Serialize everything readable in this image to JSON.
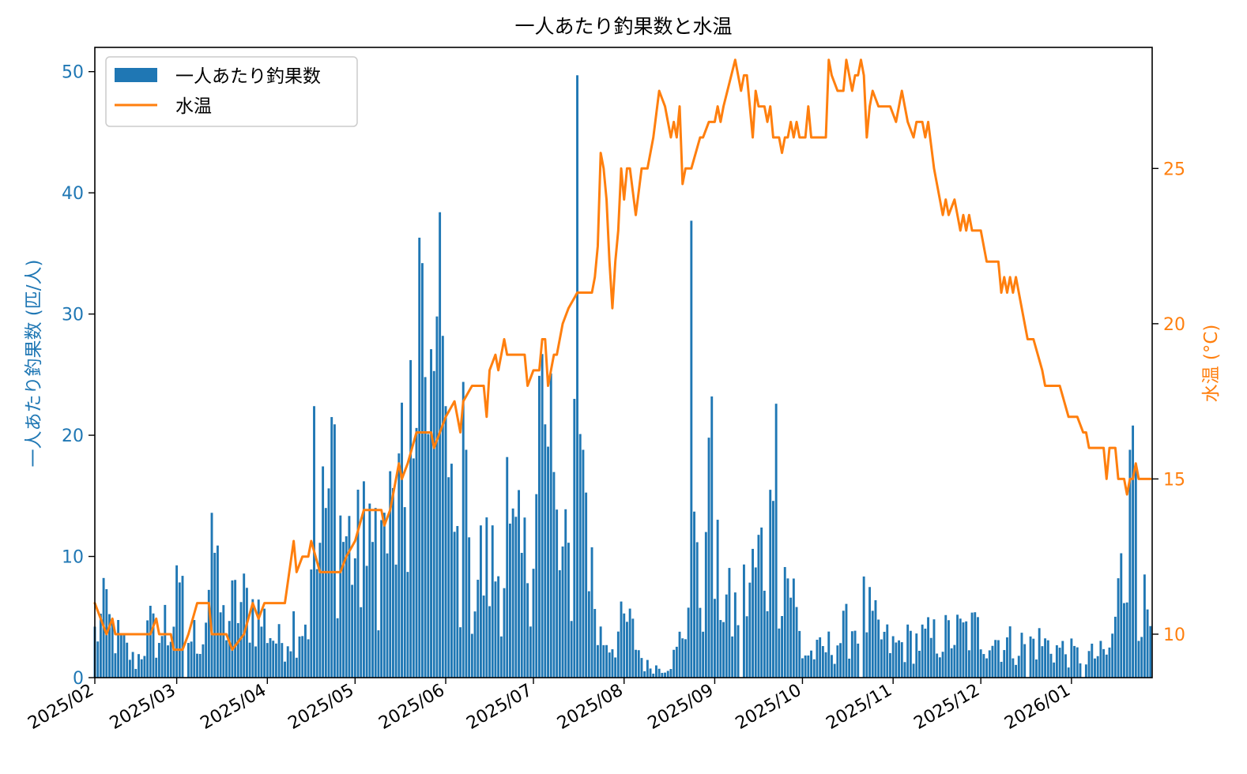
{
  "chart_data": {
    "type": "bar+line",
    "title": "一人あたり釣果数と水温",
    "y1_label": "一人あたり釣果数 (匹/人)",
    "y2_label": "水温 (°C)",
    "x_ticks": [
      "2025/02",
      "2025/03",
      "2025/04",
      "2025/05",
      "2025/06",
      "2025/07",
      "2025/08",
      "2025/09",
      "2025/10",
      "2025/11",
      "2025/12",
      "2026/01"
    ],
    "x_range": [
      "2025-02-01",
      "2026-01-28"
    ],
    "y1_range": [
      0,
      52
    ],
    "y1_ticks": [
      0,
      10,
      20,
      30,
      40,
      50
    ],
    "y2_range": [
      8.6,
      28.9
    ],
    "y2_ticks": [
      10,
      15,
      20,
      25
    ],
    "legend": {
      "placement": "upper-left",
      "bar_label": "一人あたり釣果数",
      "line_label": "水温"
    },
    "colors": {
      "bars": "#1f77b4",
      "line": "#ff7f0e",
      "y1_axis": "#1f77b4",
      "y2_axis": "#ff7f0e"
    },
    "catch_per_person": {
      "anchors": [
        [
          "2025-02-01",
          3.5
        ],
        [
          "2025-02-04",
          5.0
        ],
        [
          "2025-02-08",
          3.5
        ],
        [
          "2025-02-12",
          2.2
        ],
        [
          "2025-02-15",
          1.2
        ],
        [
          "2025-02-20",
          4.0
        ],
        [
          "2025-02-25",
          2.3
        ],
        [
          "2025-03-01",
          6.0
        ],
        [
          "2025-03-05",
          3.2
        ],
        [
          "2025-03-10",
          3.6
        ],
        [
          "2025-03-13",
          9.0
        ],
        [
          "2025-03-17",
          4.5
        ],
        [
          "2025-03-22",
          6.0
        ],
        [
          "2025-03-27",
          5.8
        ],
        [
          "2025-04-01",
          4.2
        ],
        [
          "2025-04-05",
          2.8
        ],
        [
          "2025-04-10",
          4.5
        ],
        [
          "2025-04-15",
          5.0
        ],
        [
          "2025-04-20",
          12.0
        ],
        [
          "2025-04-25",
          13.0
        ],
        [
          "2025-05-01",
          10.0
        ],
        [
          "2025-05-05",
          9.0
        ],
        [
          "2025-05-10",
          11.0
        ],
        [
          "2025-05-15",
          13.0
        ],
        [
          "2025-05-20",
          15.0
        ],
        [
          "2025-05-25",
          23.0
        ],
        [
          "2025-05-30",
          18.0
        ],
        [
          "2025-06-03",
          12.0
        ],
        [
          "2025-06-08",
          7.0
        ],
        [
          "2025-06-13",
          9.0
        ],
        [
          "2025-06-18",
          9.0
        ],
        [
          "2025-06-23",
          10.0
        ],
        [
          "2025-06-28",
          9.0
        ],
        [
          "2025-07-03",
          16.0
        ],
        [
          "2025-07-07",
          16.0
        ],
        [
          "2025-07-10",
          9.0
        ],
        [
          "2025-07-15",
          9.0
        ],
        [
          "2025-07-19",
          14.0
        ],
        [
          "2025-07-23",
          3.5
        ],
        [
          "2025-07-28",
          3.0
        ],
        [
          "2025-08-02",
          4.5
        ],
        [
          "2025-08-05",
          3.0
        ],
        [
          "2025-08-08",
          1.0
        ],
        [
          "2025-08-15",
          0.8
        ],
        [
          "2025-08-19",
          2.0
        ],
        [
          "2025-08-23",
          6.0
        ],
        [
          "2025-08-28",
          8.0
        ],
        [
          "2025-09-02",
          8.0
        ],
        [
          "2025-09-07",
          5.0
        ],
        [
          "2025-09-12",
          7.0
        ],
        [
          "2025-09-17",
          10.0
        ],
        [
          "2025-09-22",
          11.0
        ],
        [
          "2025-09-27",
          8.0
        ],
        [
          "2025-10-01",
          2.0
        ],
        [
          "2025-10-06",
          2.0
        ],
        [
          "2025-10-12",
          2.8
        ],
        [
          "2025-10-17",
          4.0
        ],
        [
          "2025-10-22",
          5.5
        ],
        [
          "2025-10-27",
          3.5
        ],
        [
          "2025-11-01",
          2.5
        ],
        [
          "2025-11-08",
          3.0
        ],
        [
          "2025-11-15",
          3.2
        ],
        [
          "2025-11-22",
          3.5
        ],
        [
          "2025-11-29",
          3.8
        ],
        [
          "2025-12-06",
          3.2
        ],
        [
          "2025-12-13",
          2.6
        ],
        [
          "2025-12-20",
          3.0
        ],
        [
          "2025-12-27",
          2.4
        ],
        [
          "2026-01-03",
          1.8
        ],
        [
          "2026-01-09",
          1.8
        ],
        [
          "2026-01-14",
          2.0
        ],
        [
          "2026-01-18",
          8.0
        ],
        [
          "2026-01-22",
          10.0
        ],
        [
          "2026-01-25",
          6.0
        ],
        [
          "2026-01-28",
          5.5
        ]
      ],
      "peaks": [
        [
          "2025-02-05",
          7.3
        ],
        [
          "2025-02-25",
          6.0
        ],
        [
          "2025-03-03",
          8.4
        ],
        [
          "2025-03-13",
          13.6
        ],
        [
          "2025-03-14",
          10.3
        ],
        [
          "2025-04-17",
          22.4
        ],
        [
          "2025-04-23",
          21.5
        ],
        [
          "2025-04-24",
          20.9
        ],
        [
          "2025-05-04",
          16.2
        ],
        [
          "2025-05-08",
          14.0
        ],
        [
          "2025-05-20",
          26.2
        ],
        [
          "2025-05-22",
          20.6
        ],
        [
          "2025-05-23",
          36.3
        ],
        [
          "2025-05-24",
          34.2
        ],
        [
          "2025-05-25",
          24.8
        ],
        [
          "2025-05-26",
          20.1
        ],
        [
          "2025-05-27",
          27.1
        ],
        [
          "2025-05-28",
          25.3
        ],
        [
          "2025-05-29",
          29.8
        ],
        [
          "2025-05-30",
          38.4
        ],
        [
          "2025-05-31",
          28.2
        ],
        [
          "2025-06-01",
          22.4
        ],
        [
          "2025-06-07",
          24.4
        ],
        [
          "2025-06-08",
          18.8
        ],
        [
          "2025-06-22",
          18.2
        ],
        [
          "2025-07-03",
          24.9
        ],
        [
          "2025-07-04",
          26.7
        ],
        [
          "2025-07-05",
          20.9
        ],
        [
          "2025-07-07",
          25.1
        ],
        [
          "2025-07-15",
          23.0
        ],
        [
          "2025-07-16",
          49.7
        ],
        [
          "2025-07-17",
          20.1
        ],
        [
          "2025-07-18",
          18.8
        ],
        [
          "2025-08-24",
          37.7
        ],
        [
          "2025-08-25",
          13.7
        ],
        [
          "2025-08-30",
          19.8
        ],
        [
          "2025-08-31",
          23.2
        ],
        [
          "2025-09-20",
          15.5
        ],
        [
          "2025-09-22",
          22.6
        ],
        [
          "2026-01-21",
          18.8
        ],
        [
          "2026-01-22",
          20.8
        ],
        [
          "2026-01-23",
          17.2
        ]
      ],
      "zero_days": [
        "2025-03-04",
        "2025-09-10",
        "2025-10-21",
        "2025-12-17",
        "2026-01-05"
      ]
    },
    "water_temp": {
      "anchors": [
        [
          "2025-02-01",
          11.0
        ],
        [
          "2025-02-05",
          10.0
        ],
        [
          "2025-02-07",
          10.5
        ],
        [
          "2025-02-08",
          10.0
        ],
        [
          "2025-02-20",
          10.0
        ],
        [
          "2025-02-22",
          10.5
        ],
        [
          "2025-02-23",
          10.0
        ],
        [
          "2025-02-27",
          10.0
        ],
        [
          "2025-02-28",
          9.5
        ],
        [
          "2025-03-03",
          9.5
        ],
        [
          "2025-03-05",
          10.0
        ],
        [
          "2025-03-08",
          11.0
        ],
        [
          "2025-03-12",
          11.0
        ],
        [
          "2025-03-13",
          10.0
        ],
        [
          "2025-03-18",
          10.0
        ],
        [
          "2025-03-20",
          9.5
        ],
        [
          "2025-03-24",
          10.0
        ],
        [
          "2025-03-27",
          11.0
        ],
        [
          "2025-03-29",
          10.5
        ],
        [
          "2025-03-31",
          11.0
        ],
        [
          "2025-04-07",
          11.0
        ],
        [
          "2025-04-10",
          13.0
        ],
        [
          "2025-04-11",
          12.0
        ],
        [
          "2025-04-13",
          12.5
        ],
        [
          "2025-04-15",
          12.5
        ],
        [
          "2025-04-16",
          13.0
        ],
        [
          "2025-04-19",
          12.0
        ],
        [
          "2025-04-26",
          12.0
        ],
        [
          "2025-04-28",
          12.5
        ],
        [
          "2025-05-01",
          13.0
        ],
        [
          "2025-05-04",
          14.0
        ],
        [
          "2025-05-10",
          14.0
        ],
        [
          "2025-05-11",
          13.5
        ],
        [
          "2025-05-13",
          14.0
        ],
        [
          "2025-05-16",
          15.5
        ],
        [
          "2025-05-17",
          15.0
        ],
        [
          "2025-05-19",
          15.5
        ],
        [
          "2025-05-22",
          16.5
        ],
        [
          "2025-05-27",
          16.5
        ],
        [
          "2025-05-28",
          16.0
        ],
        [
          "2025-05-30",
          16.5
        ],
        [
          "2025-06-01",
          17.0
        ],
        [
          "2025-06-04",
          17.5
        ],
        [
          "2025-06-06",
          16.5
        ],
        [
          "2025-06-07",
          17.5
        ],
        [
          "2025-06-10",
          18.0
        ],
        [
          "2025-06-14",
          18.0
        ],
        [
          "2025-06-15",
          17.0
        ],
        [
          "2025-06-16",
          18.5
        ],
        [
          "2025-06-18",
          19.0
        ],
        [
          "2025-06-19",
          18.5
        ],
        [
          "2025-06-21",
          19.5
        ],
        [
          "2025-06-22",
          19.0
        ],
        [
          "2025-06-28",
          19.0
        ],
        [
          "2025-06-29",
          18.0
        ],
        [
          "2025-07-01",
          18.5
        ],
        [
          "2025-07-03",
          18.5
        ],
        [
          "2025-07-04",
          19.5
        ],
        [
          "2025-07-05",
          19.5
        ],
        [
          "2025-07-06",
          18.0
        ],
        [
          "2025-07-08",
          19.0
        ],
        [
          "2025-07-09",
          19.0
        ],
        [
          "2025-07-11",
          20.0
        ],
        [
          "2025-07-13",
          20.5
        ],
        [
          "2025-07-16",
          21.0
        ],
        [
          "2025-07-21",
          21.0
        ],
        [
          "2025-07-22",
          21.5
        ],
        [
          "2025-07-23",
          22.5
        ],
        [
          "2025-07-24",
          25.5
        ],
        [
          "2025-07-25",
          25.0
        ],
        [
          "2025-07-26",
          24.0
        ],
        [
          "2025-07-27",
          22.0
        ],
        [
          "2025-07-28",
          20.5
        ],
        [
          "2025-07-29",
          22.0
        ],
        [
          "2025-07-30",
          23.0
        ],
        [
          "2025-07-31",
          25.0
        ],
        [
          "2025-08-01",
          24.0
        ],
        [
          "2025-08-02",
          25.0
        ],
        [
          "2025-08-03",
          25.0
        ],
        [
          "2025-08-05",
          23.5
        ],
        [
          "2025-08-07",
          25.0
        ],
        [
          "2025-08-09",
          25.0
        ],
        [
          "2025-08-11",
          26.0
        ],
        [
          "2025-08-13",
          27.5
        ],
        [
          "2025-08-15",
          27.0
        ],
        [
          "2025-08-17",
          26.0
        ],
        [
          "2025-08-18",
          26.5
        ],
        [
          "2025-08-19",
          26.0
        ],
        [
          "2025-08-20",
          27.0
        ],
        [
          "2025-08-21",
          24.5
        ],
        [
          "2025-08-22",
          25.0
        ],
        [
          "2025-08-24",
          25.0
        ],
        [
          "2025-08-27",
          26.0
        ],
        [
          "2025-08-28",
          26.0
        ],
        [
          "2025-08-30",
          26.5
        ],
        [
          "2025-09-01",
          26.5
        ],
        [
          "2025-09-02",
          27.0
        ],
        [
          "2025-09-03",
          26.5
        ],
        [
          "2025-09-04",
          27.0
        ],
        [
          "2025-09-08",
          28.5
        ],
        [
          "2025-09-09",
          28.0
        ],
        [
          "2025-09-10",
          27.5
        ],
        [
          "2025-09-11",
          28.0
        ],
        [
          "2025-09-12",
          28.0
        ],
        [
          "2025-09-14",
          26.0
        ],
        [
          "2025-09-15",
          27.5
        ],
        [
          "2025-09-16",
          27.0
        ],
        [
          "2025-09-18",
          27.0
        ],
        [
          "2025-09-19",
          26.5
        ],
        [
          "2025-09-20",
          27.0
        ],
        [
          "2025-09-21",
          26.0
        ],
        [
          "2025-09-23",
          26.0
        ],
        [
          "2025-09-24",
          25.5
        ],
        [
          "2025-09-25",
          26.0
        ],
        [
          "2025-09-26",
          26.0
        ],
        [
          "2025-09-27",
          26.5
        ],
        [
          "2025-09-28",
          26.0
        ],
        [
          "2025-09-29",
          26.5
        ],
        [
          "2025-09-30",
          26.0
        ],
        [
          "2025-10-02",
          26.0
        ],
        [
          "2025-10-03",
          27.0
        ],
        [
          "2025-10-04",
          26.0
        ],
        [
          "2025-10-09",
          26.0
        ],
        [
          "2025-10-10",
          28.5
        ],
        [
          "2025-10-11",
          28.0
        ],
        [
          "2025-10-13",
          27.5
        ],
        [
          "2025-10-15",
          27.5
        ],
        [
          "2025-10-16",
          28.5
        ],
        [
          "2025-10-17",
          28.0
        ],
        [
          "2025-10-18",
          27.5
        ],
        [
          "2025-10-19",
          28.0
        ],
        [
          "2025-10-20",
          28.0
        ],
        [
          "2025-10-21",
          28.5
        ],
        [
          "2025-10-22",
          28.0
        ],
        [
          "2025-10-23",
          26.0
        ],
        [
          "2025-10-24",
          27.0
        ],
        [
          "2025-10-25",
          27.5
        ],
        [
          "2025-10-27",
          27.0
        ],
        [
          "2025-10-31",
          27.0
        ],
        [
          "2025-11-02",
          26.5
        ],
        [
          "2025-11-04",
          27.5
        ],
        [
          "2025-11-06",
          26.5
        ],
        [
          "2025-11-08",
          26.0
        ],
        [
          "2025-11-09",
          26.5
        ],
        [
          "2025-11-11",
          26.5
        ],
        [
          "2025-11-12",
          26.0
        ],
        [
          "2025-11-13",
          26.5
        ],
        [
          "2025-11-15",
          25.0
        ],
        [
          "2025-11-17",
          24.0
        ],
        [
          "2025-11-18",
          23.5
        ],
        [
          "2025-11-19",
          24.0
        ],
        [
          "2025-11-20",
          23.5
        ],
        [
          "2025-11-22",
          24.0
        ],
        [
          "2025-11-23",
          23.5
        ],
        [
          "2025-11-24",
          23.0
        ],
        [
          "2025-11-25",
          23.5
        ],
        [
          "2025-11-26",
          23.0
        ],
        [
          "2025-11-27",
          23.5
        ],
        [
          "2025-11-28",
          23.0
        ],
        [
          "2025-12-01",
          23.0
        ],
        [
          "2025-12-03",
          22.0
        ],
        [
          "2025-12-07",
          22.0
        ],
        [
          "2025-12-08",
          21.0
        ],
        [
          "2025-12-09",
          21.5
        ],
        [
          "2025-12-10",
          21.0
        ],
        [
          "2025-12-11",
          21.5
        ],
        [
          "2025-12-12",
          21.0
        ],
        [
          "2025-12-13",
          21.5
        ],
        [
          "2025-12-17",
          19.5
        ],
        [
          "2025-12-19",
          19.5
        ],
        [
          "2025-12-22",
          18.5
        ],
        [
          "2025-12-23",
          18.0
        ],
        [
          "2025-12-28",
          18.0
        ],
        [
          "2025-12-31",
          17.0
        ],
        [
          "2026-01-03",
          17.0
        ],
        [
          "2026-01-05",
          16.5
        ],
        [
          "2026-01-06",
          16.5
        ],
        [
          "2026-01-07",
          16.0
        ],
        [
          "2026-01-12",
          16.0
        ],
        [
          "2026-01-13",
          15.0
        ],
        [
          "2026-01-14",
          16.0
        ],
        [
          "2026-01-16",
          16.0
        ],
        [
          "2026-01-17",
          15.0
        ],
        [
          "2026-01-19",
          15.0
        ],
        [
          "2026-01-20",
          14.5
        ],
        [
          "2026-01-21",
          15.0
        ],
        [
          "2026-01-22",
          15.0
        ],
        [
          "2026-01-23",
          15.5
        ],
        [
          "2026-01-24",
          15.0
        ],
        [
          "2026-01-28",
          15.0
        ]
      ]
    }
  }
}
